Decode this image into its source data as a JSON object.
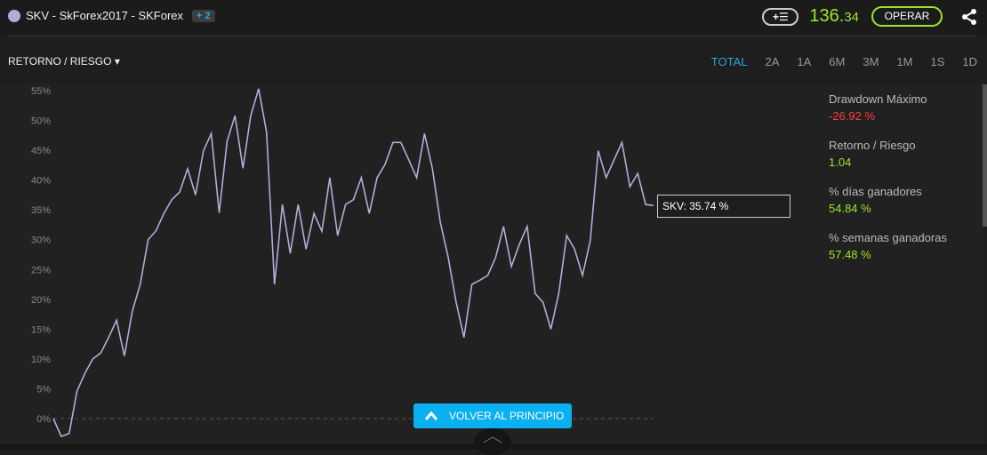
{
  "header": {
    "title": "SKV - SkForex2017 - SKForex",
    "badge": "+ 2",
    "add_label": "+☰",
    "price_main": "136.",
    "price_dec": "34",
    "operar": "OPERAR"
  },
  "toolbar": {
    "metric": "RETORNO / RIESGO",
    "ranges": [
      "TOTAL",
      "2A",
      "1A",
      "6M",
      "3M",
      "1M",
      "1S",
      "1D"
    ],
    "active": "TOTAL"
  },
  "stats": [
    {
      "label": "Drawdown Máximo",
      "value": "-26.92 %",
      "color": "#ff3b3b"
    },
    {
      "label": "Retorno / Riesgo",
      "value": "1.04",
      "color": "#9be52a"
    },
    {
      "label": "% días ganadores",
      "value": "54.84 %",
      "color": "#9be52a"
    },
    {
      "label": "% semanas ganadoras",
      "value": "57.48 %",
      "color": "#9be52a"
    }
  ],
  "tooltip": "SKV: 35.74 %",
  "back_button": "VOLVER AL PRINCIPIO",
  "chart_data": {
    "type": "line",
    "yticks": [
      "0%",
      "5%",
      "10%",
      "15%",
      "20%",
      "25%",
      "30%",
      "35%",
      "40%",
      "45%",
      "50%",
      "55%"
    ],
    "ylim": [
      -3,
      56
    ],
    "line_color": "#b3acd8",
    "series": [
      {
        "name": "SKV",
        "values": [
          0,
          -3,
          -2.5,
          4.6,
          7.6,
          10,
          11,
          13.6,
          16.5,
          10.5,
          18,
          22.5,
          30,
          31.5,
          34.4,
          36.7,
          38,
          41.9,
          37.5,
          44.9,
          47.8,
          34.5,
          46.5,
          50.8,
          42,
          50.8,
          55.3,
          48,
          22.5,
          35.9,
          27.7,
          35.9,
          28.4,
          34.4,
          31.4,
          40.4,
          30.7,
          35.9,
          36.7,
          40.4,
          34.4,
          40.4,
          42.6,
          46.3,
          46.3,
          43.4,
          40.4,
          47.8,
          41.9,
          32.9,
          27,
          19.5,
          13.6,
          22.5,
          23.2,
          24,
          27,
          32.2,
          25.5,
          29.2,
          32.2,
          21,
          19.5,
          15,
          21,
          30.7,
          28.4,
          24,
          29.9,
          44.9,
          40.4,
          43.4,
          46.3,
          38.9,
          41.1,
          35.9,
          35.74
        ]
      }
    ]
  }
}
